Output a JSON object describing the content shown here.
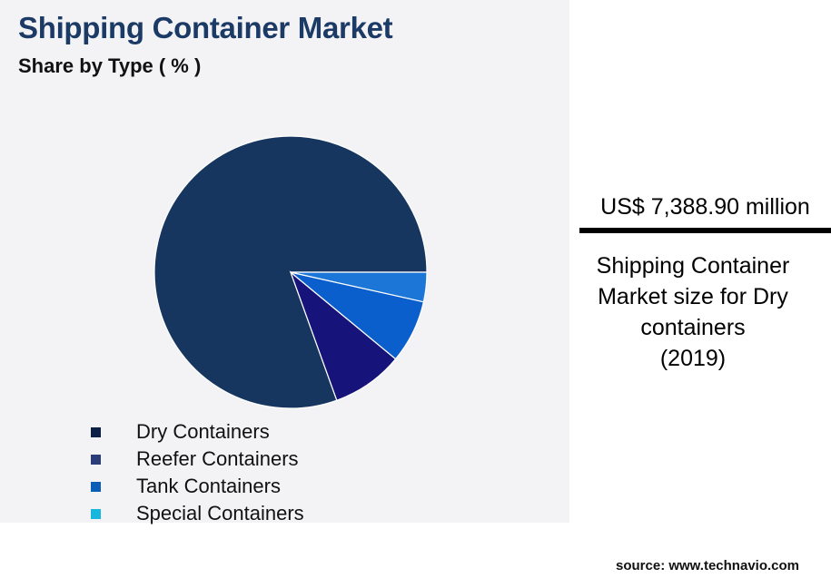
{
  "header": {
    "title": "Shipping Container Market",
    "subtitle": "Share by Type ( % )"
  },
  "chart_data": {
    "type": "pie",
    "title": "Shipping Container Market",
    "subtitle": "Share by Type ( % )",
    "categories": [
      "Dry Containers",
      "Reefer Containers",
      "Tank Containers",
      "Special Containers"
    ],
    "values": [
      80.5,
      8.5,
      7.5,
      3.5
    ],
    "slice_colors": [
      "#17365f",
      "#16137a",
      "#0a5fcc",
      "#1b76d8"
    ],
    "legend_colors": [
      "#0d1f45",
      "#2b3d79",
      "#0a5eb5",
      "#17b7dd"
    ],
    "legend": "bottom"
  },
  "callout": {
    "value": "US$ 7,388.90 million",
    "desc_lines": [
      "Shipping Container",
      "Market size for Dry",
      "containers",
      "(2019)"
    ]
  },
  "source": "source: www.technavio.com"
}
